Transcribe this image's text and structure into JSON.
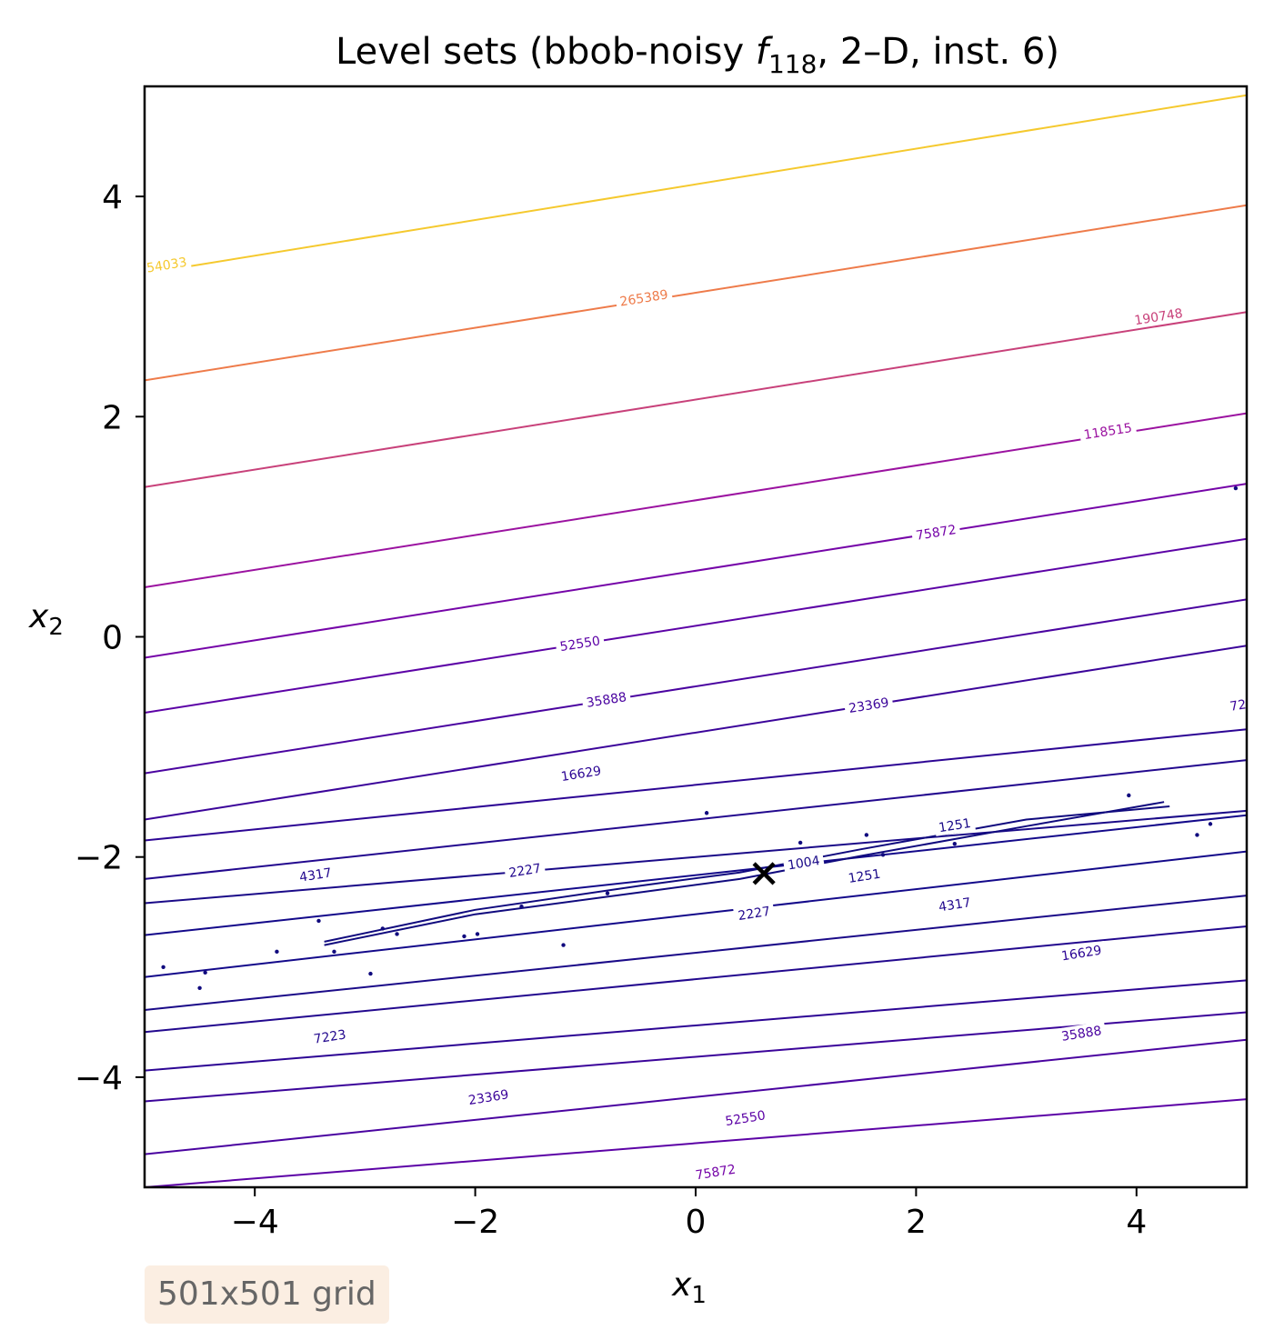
{
  "chart_data": {
    "type": "contour",
    "title_parts": {
      "prefix": "Level sets (bbob-noisy ",
      "f": "f",
      "sub": "118",
      "suffix": ", 2–D, inst. 6)"
    },
    "xlabel": {
      "base": "x",
      "sub": "1"
    },
    "ylabel": {
      "base": "x",
      "sub": "2"
    },
    "xlim": [
      -5,
      5
    ],
    "ylim": [
      -5,
      5
    ],
    "xticks": [
      {
        "value": -4,
        "label": "−4"
      },
      {
        "value": -2,
        "label": "−2"
      },
      {
        "value": 0,
        "label": "0"
      },
      {
        "value": 2,
        "label": "2"
      },
      {
        "value": 4,
        "label": "4"
      }
    ],
    "yticks": [
      {
        "value": 4,
        "label": "4"
      },
      {
        "value": 2,
        "label": "2"
      },
      {
        "value": 0,
        "label": "0"
      },
      {
        "value": -2,
        "label": "−2"
      },
      {
        "value": -4,
        "label": "−4"
      }
    ],
    "optimum": {
      "x": 0.62,
      "y": -2.15,
      "marker": "x"
    },
    "level_lines": [
      {
        "y_left": 3.3,
        "y_right": 4.92,
        "color": "#f5c92e"
      },
      {
        "y_left": 2.33,
        "y_right": 3.92,
        "color": "#ee7b4a"
      },
      {
        "y_left": 1.36,
        "y_right": 2.95,
        "color": "#c8417a"
      },
      {
        "y_left": 0.45,
        "y_right": 2.03,
        "color": "#9b12a0"
      },
      {
        "y_left": -0.19,
        "y_right": 1.39,
        "color": "#7504a8"
      },
      {
        "y_left": -0.69,
        "y_right": 0.89,
        "color": "#5c02a6"
      },
      {
        "y_left": -1.24,
        "y_right": 0.34,
        "color": "#4a03a0"
      },
      {
        "y_left": -1.66,
        "y_right": -0.08,
        "color": "#3b049a"
      },
      {
        "y_left": -1.85,
        "y_right": -0.84,
        "color": "#2c0594"
      },
      {
        "y_left": -2.2,
        "y_right": -1.12,
        "color": "#22088e"
      },
      {
        "y_left": -2.42,
        "y_right": -1.58,
        "color": "#1a0a88"
      },
      {
        "y_left": -2.71,
        "y_right": -1.62,
        "color": "#13098a"
      },
      {
        "y_left": -3.09,
        "y_right": -1.95,
        "color": "#13098a"
      },
      {
        "y_left": -3.39,
        "y_right": -2.35,
        "color": "#1a0a88"
      },
      {
        "y_left": -3.59,
        "y_right": -2.63,
        "color": "#22088e"
      },
      {
        "y_left": -3.94,
        "y_right": -3.12,
        "color": "#2c0594"
      },
      {
        "y_left": -4.22,
        "y_right": -3.41,
        "color": "#3b049a"
      },
      {
        "y_left": -4.7,
        "y_right": -3.66,
        "color": "#4a03a0"
      },
      {
        "y_left": -5.0,
        "y_right": -4.2,
        "color": "#5c02a6"
      }
    ],
    "valley_curves": [
      {
        "points": [
          [
            -3.37,
            -2.8
          ],
          [
            -2.0,
            -2.52
          ],
          [
            -0.5,
            -2.32
          ],
          [
            0.4,
            -2.2
          ],
          [
            1.5,
            -1.99
          ],
          [
            3.0,
            -1.72
          ],
          [
            4.25,
            -1.5
          ]
        ],
        "color": "#100a7e"
      },
      {
        "points": [
          [
            -3.37,
            -2.77
          ],
          [
            -2.0,
            -2.48
          ],
          [
            -0.5,
            -2.26
          ],
          [
            0.4,
            -2.14
          ],
          [
            1.5,
            -1.93
          ],
          [
            3.0,
            -1.66
          ],
          [
            4.3,
            -1.54
          ]
        ],
        "color": "#100a7e"
      }
    ],
    "noise_dots": [
      [
        -4.83,
        -3.0
      ],
      [
        -4.45,
        -3.05
      ],
      [
        -3.42,
        -2.58
      ],
      [
        -3.28,
        -2.86
      ],
      [
        -2.84,
        -2.65
      ],
      [
        -2.71,
        -2.7
      ],
      [
        -2.1,
        -2.72
      ],
      [
        -1.98,
        -2.7
      ],
      [
        -1.58,
        -2.45
      ],
      [
        -1.2,
        -2.8
      ],
      [
        -0.8,
        -2.33
      ],
      [
        0.1,
        -1.6
      ],
      [
        0.95,
        -1.87
      ],
      [
        1.55,
        -1.8
      ],
      [
        1.7,
        -1.98
      ],
      [
        2.35,
        -1.88
      ],
      [
        3.93,
        -1.44
      ],
      [
        4.55,
        -1.8
      ],
      [
        4.67,
        -1.7
      ],
      [
        4.9,
        1.35
      ],
      [
        -3.8,
        -2.86
      ],
      [
        -2.95,
        -3.06
      ],
      [
        -4.5,
        -3.19
      ]
    ],
    "contour_labels": [
      {
        "text": "54033",
        "x": -4.8,
        "y": 3.38,
        "color": "#f5c92e"
      },
      {
        "text": "265389",
        "x": -0.47,
        "y": 3.08,
        "color": "#ee7b4a"
      },
      {
        "text": "190748",
        "x": 4.2,
        "y": 2.91,
        "color": "#c8417a"
      },
      {
        "text": "118515",
        "x": 3.74,
        "y": 1.87,
        "color": "#9b12a0"
      },
      {
        "text": "75872",
        "x": 2.18,
        "y": 0.95,
        "color": "#7504a8"
      },
      {
        "text": "52550",
        "x": -1.05,
        "y": -0.06,
        "color": "#5c02a6"
      },
      {
        "text": "35888",
        "x": -0.81,
        "y": -0.57,
        "color": "#4a03a0"
      },
      {
        "text": "23369",
        "x": 1.57,
        "y": -0.62,
        "color": "#3b049a"
      },
      {
        "text": "72",
        "x": 4.92,
        "y": -0.62,
        "color": "#3b049a"
      },
      {
        "text": "16629",
        "x": -1.04,
        "y": -1.24,
        "color": "#2c0594"
      },
      {
        "text": "1251",
        "x": 2.35,
        "y": -1.71,
        "color": "#1a0a88"
      },
      {
        "text": "1004",
        "x": 0.98,
        "y": -2.05,
        "color": "#1a0a88"
      },
      {
        "text": "1251",
        "x": 1.53,
        "y": -2.17,
        "color": "#1a0a88"
      },
      {
        "text": "4317",
        "x": -3.45,
        "y": -2.16,
        "color": "#22088e"
      },
      {
        "text": "2227",
        "x": -1.55,
        "y": -2.12,
        "color": "#22088e"
      },
      {
        "text": "2227",
        "x": 0.53,
        "y": -2.51,
        "color": "#22088e"
      },
      {
        "text": "4317",
        "x": 2.35,
        "y": -2.43,
        "color": "#22088e"
      },
      {
        "text": "16629",
        "x": 3.5,
        "y": -2.87,
        "color": "#2c0594"
      },
      {
        "text": "7223",
        "x": -3.32,
        "y": -3.63,
        "color": "#22088e"
      },
      {
        "text": "35888",
        "x": 3.5,
        "y": -3.6,
        "color": "#4a03a0"
      },
      {
        "text": "23369",
        "x": -1.88,
        "y": -4.18,
        "color": "#3b049a"
      },
      {
        "text": "52550",
        "x": 0.45,
        "y": -4.37,
        "color": "#5c02a6"
      },
      {
        "text": "75872",
        "x": 0.18,
        "y": -4.86,
        "color": "#7504a8"
      }
    ]
  },
  "badge": {
    "text": "501x501 grid"
  }
}
